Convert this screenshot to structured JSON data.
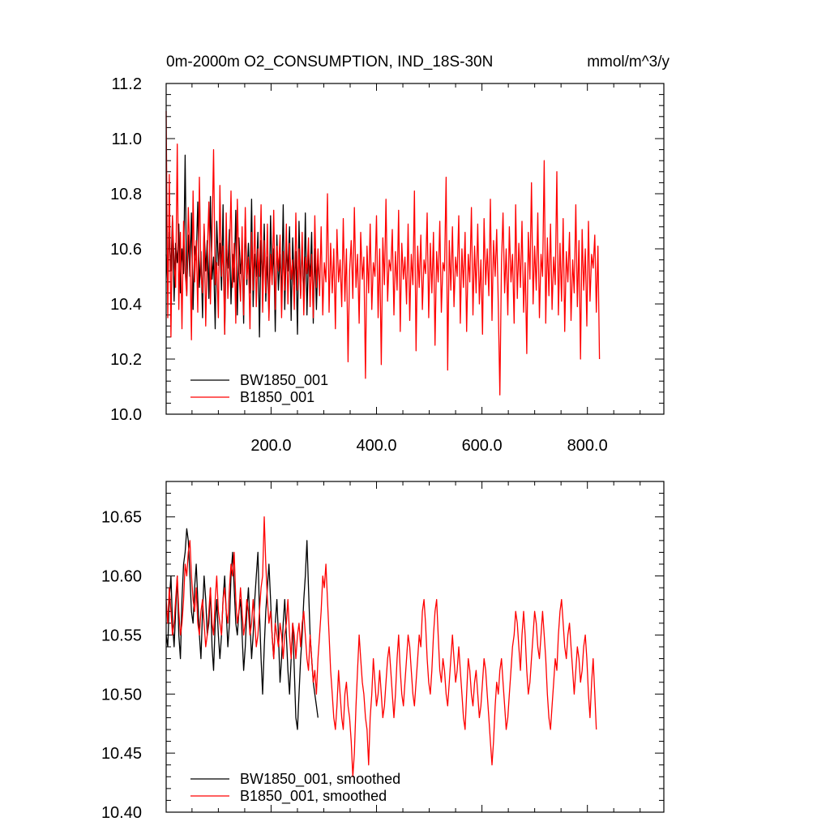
{
  "chart_data": [
    {
      "type": "line",
      "title": "0m-2000m O2_CONSUMPTION, IND_18S-30N",
      "units": "mmol/m^3/y",
      "xlim": [
        1,
        945
      ],
      "ylim": [
        10.0,
        11.2
      ],
      "xticks": [
        200,
        400,
        600,
        800
      ],
      "xtick_labels": [
        "200.0",
        "400.0",
        "600.0",
        "800.0"
      ],
      "yticks": [
        10.0,
        10.2,
        10.4,
        10.6,
        10.8,
        11.0,
        11.2
      ],
      "ytick_labels": [
        "10.0",
        "10.2",
        "10.4",
        "10.6",
        "10.8",
        "11.0",
        "11.2"
      ],
      "legend_position": "bottom-left",
      "series": [
        {
          "name": "BW1850_001",
          "color": "#000000",
          "x_start": 1,
          "x_step": 3,
          "values": [
            10.58,
            10.47,
            10.66,
            10.52,
            10.72,
            10.41,
            10.62,
            10.55,
            10.69,
            10.44,
            10.6,
            10.51,
            10.94,
            10.43,
            10.65,
            10.5,
            10.73,
            10.38,
            10.61,
            10.56,
            10.77,
            10.46,
            10.59,
            10.35,
            10.68,
            10.52,
            10.63,
            10.42,
            10.79,
            10.49,
            10.57,
            10.31,
            10.7,
            10.54,
            10.62,
            10.45,
            10.76,
            10.29,
            10.6,
            10.53,
            10.67,
            10.4,
            10.58,
            10.48,
            10.74,
            10.36,
            10.64,
            10.51,
            10.59,
            10.33,
            10.71,
            10.47,
            10.62,
            10.44,
            10.78,
            10.39,
            10.58,
            10.5,
            10.66,
            10.28,
            10.63,
            10.46,
            10.69,
            10.41,
            10.57,
            10.35,
            10.72,
            10.49,
            10.6,
            10.3,
            10.65,
            10.45,
            10.58,
            10.42,
            10.76,
            10.38,
            10.61,
            10.52,
            10.68,
            10.34,
            10.64,
            10.47,
            10.59,
            10.29,
            10.7,
            10.43,
            10.62,
            10.4,
            10.73,
            10.36,
            10.58,
            10.5,
            10.66,
            10.33,
            10.6,
            10.38,
            10.57
          ]
        },
        {
          "name": "B1850_001",
          "color": "#ff0000",
          "x_start": 1,
          "x_step": 3,
          "values": [
            11.1,
            10.35,
            10.87,
            10.28,
            10.72,
            10.55,
            10.46,
            10.98,
            10.38,
            10.66,
            10.31,
            10.7,
            10.52,
            10.43,
            10.75,
            10.59,
            10.27,
            10.81,
            10.48,
            10.63,
            10.37,
            10.86,
            10.51,
            10.44,
            10.69,
            10.32,
            10.58,
            10.77,
            10.4,
            10.64,
            10.96,
            10.47,
            10.55,
            10.35,
            10.83,
            10.5,
            10.61,
            10.29,
            10.73,
            10.42,
            10.57,
            10.81,
            10.46,
            10.62,
            10.33,
            10.78,
            10.53,
            10.41,
            10.68,
            10.36,
            10.75,
            10.49,
            10.57,
            10.31,
            10.66,
            10.45,
            10.72,
            10.39,
            10.6,
            10.5,
            10.76,
            10.37,
            10.63,
            10.44,
            10.69,
            10.34,
            10.58,
            10.47,
            10.74,
            10.38,
            10.61,
            10.52,
            10.65,
            10.35,
            10.59,
            10.45,
            10.69,
            10.4,
            10.62,
            10.49,
            10.56,
            10.38,
            10.73,
            10.45,
            10.6,
            10.42,
            10.66,
            10.36,
            10.57,
            10.51,
            10.64,
            10.39,
            10.58,
            10.35,
            10.72,
            10.46,
            10.6,
            10.43,
            10.68,
            10.36,
            10.55,
            10.48,
            10.8,
            10.37,
            10.62,
            10.44,
            10.6,
            10.31,
            10.67,
            10.48,
            10.56,
            10.39,
            10.71,
            10.41,
            10.6,
            10.19,
            10.52,
            10.63,
            10.42,
            10.75,
            10.46,
            10.58,
            10.33,
            10.66,
            10.49,
            10.57,
            10.13,
            10.61,
            10.44,
            10.69,
            10.38,
            10.55,
            10.5,
            10.72,
            10.35,
            10.6,
            10.18,
            10.64,
            10.47,
            10.78,
            10.41,
            10.56,
            10.52,
            10.67,
            10.36,
            10.59,
            10.45,
            10.74,
            10.3,
            10.62,
            10.49,
            10.57,
            10.4,
            10.69,
            10.34,
            10.58,
            10.47,
            10.81,
            10.23,
            10.61,
            10.46,
            10.65,
            10.38,
            10.56,
            10.51,
            10.73,
            10.35,
            10.62,
            10.44,
            10.66,
            10.25,
            10.59,
            10.48,
            10.7,
            10.37,
            10.55,
            10.52,
            10.86,
            10.16,
            10.63,
            10.45,
            10.68,
            10.39,
            10.57,
            10.5,
            10.72,
            10.33,
            10.6,
            10.46,
            10.66,
            10.3,
            10.58,
            10.48,
            10.75,
            10.36,
            10.61,
            10.44,
            10.69,
            10.4,
            10.56,
            10.29,
            10.71,
            10.47,
            10.6,
            10.43,
            10.78,
            10.34,
            10.63,
            10.5,
            10.67,
            10.39,
            10.07,
            10.55,
            10.73,
            10.44,
            10.6,
            10.36,
            10.68,
            10.48,
            10.58,
            10.33,
            10.76,
            10.42,
            10.62,
            10.46,
            10.7,
            10.37,
            10.55,
            10.22,
            10.66,
            10.49,
            10.84,
            10.4,
            10.61,
            10.45,
            10.73,
            10.35,
            10.58,
            10.5,
            10.92,
            10.33,
            10.64,
            10.43,
            10.69,
            10.38,
            10.57,
            10.47,
            10.88,
            10.36,
            10.62,
            10.41,
            10.71,
            10.3,
            10.59,
            10.48,
            10.66,
            10.34,
            10.56,
            10.44,
            10.76,
            10.39,
            10.63,
            10.2,
            10.67,
            10.45,
            10.6,
            10.32,
            10.7,
            10.41,
            10.58,
            10.53,
            10.65,
            10.37,
            10.61,
            10.2
          ]
        }
      ]
    },
    {
      "type": "line",
      "xlim": [
        1,
        945
      ],
      "ylim": [
        10.4,
        10.68
      ],
      "yticks": [
        10.4,
        10.45,
        10.5,
        10.55,
        10.6,
        10.65
      ],
      "ytick_labels": [
        "10.40",
        "10.45",
        "10.50",
        "10.55",
        "10.60",
        "10.65"
      ],
      "legend_position": "bottom-left",
      "series": [
        {
          "name": "BW1850_001, smoothed",
          "color": "#000000",
          "x_start": 1,
          "x_step": 3,
          "values": [
            10.55,
            10.54,
            10.58,
            10.6,
            10.56,
            10.54,
            10.57,
            10.6,
            10.55,
            10.53,
            10.58,
            10.61,
            10.62,
            10.64,
            10.63,
            10.6,
            10.57,
            10.56,
            10.59,
            10.61,
            10.58,
            10.55,
            10.53,
            10.57,
            10.6,
            10.58,
            10.55,
            10.56,
            10.59,
            10.54,
            10.52,
            10.56,
            10.58,
            10.55,
            10.53,
            10.55,
            10.58,
            10.6,
            10.57,
            10.54,
            10.56,
            10.6,
            10.62,
            10.59,
            10.56,
            10.55,
            10.57,
            10.58,
            10.55,
            10.52,
            10.54,
            10.57,
            10.59,
            10.56,
            10.53,
            10.55,
            10.58,
            10.6,
            10.62,
            10.57,
            10.53,
            10.5,
            10.54,
            10.57,
            10.59,
            10.61,
            10.58,
            10.55,
            10.53,
            10.56,
            10.58,
            10.55,
            10.51,
            10.53,
            10.56,
            10.58,
            10.55,
            10.52,
            10.5,
            10.53,
            10.56,
            10.52,
            10.48,
            10.47,
            10.5,
            10.53,
            10.55,
            10.58,
            10.6,
            10.63,
            10.59,
            10.55,
            10.53,
            10.51,
            10.5,
            10.49,
            10.48
          ]
        },
        {
          "name": "B1850_001, smoothed",
          "color": "#ff0000",
          "x_start": 1,
          "x_step": 3,
          "values": [
            10.58,
            10.56,
            10.59,
            10.57,
            10.55,
            10.56,
            10.58,
            10.6,
            10.57,
            10.55,
            10.56,
            10.58,
            10.61,
            10.6,
            10.62,
            10.63,
            10.6,
            10.58,
            10.57,
            10.59,
            10.56,
            10.55,
            10.57,
            10.58,
            10.56,
            10.54,
            10.55,
            10.57,
            10.59,
            10.56,
            10.55,
            10.58,
            10.6,
            10.57,
            10.56,
            10.55,
            10.58,
            10.59,
            10.57,
            10.56,
            10.59,
            10.61,
            10.6,
            10.62,
            10.58,
            10.56,
            10.57,
            10.59,
            10.57,
            10.55,
            10.56,
            10.58,
            10.57,
            10.55,
            10.56,
            10.58,
            10.56,
            10.54,
            10.55,
            10.57,
            10.59,
            10.6,
            10.65,
            10.61,
            10.58,
            10.56,
            10.57,
            10.55,
            10.53,
            10.56,
            10.55,
            10.54,
            10.56,
            10.55,
            10.53,
            10.55,
            10.56,
            10.58,
            10.55,
            10.53,
            10.56,
            10.55,
            10.53,
            10.55,
            10.56,
            10.54,
            10.56,
            10.57,
            10.55,
            10.53,
            10.52,
            10.55,
            10.53,
            10.51,
            10.52,
            10.5,
            10.53,
            10.55,
            10.57,
            10.6,
            10.59,
            10.61,
            10.58,
            10.55,
            10.52,
            10.5,
            10.48,
            10.47,
            10.49,
            10.52,
            10.5,
            10.48,
            10.47,
            10.5,
            10.51,
            10.49,
            10.48,
            10.46,
            10.43,
            10.45,
            10.49,
            10.52,
            10.55,
            10.53,
            10.51,
            10.5,
            10.48,
            10.47,
            10.44,
            10.48,
            10.5,
            10.53,
            10.51,
            10.49,
            10.5,
            10.52,
            10.5,
            10.48,
            10.49,
            10.51,
            10.53,
            10.54,
            10.52,
            10.5,
            10.48,
            10.5,
            10.53,
            10.55,
            10.52,
            10.5,
            10.49,
            10.51,
            10.53,
            10.55,
            10.54,
            10.52,
            10.5,
            10.49,
            10.51,
            10.53,
            10.55,
            10.54,
            10.57,
            10.58,
            10.56,
            10.53,
            10.51,
            10.5,
            10.52,
            10.55,
            10.57,
            10.58,
            10.55,
            10.52,
            10.51,
            10.53,
            10.52,
            10.5,
            10.49,
            10.51,
            10.53,
            10.55,
            10.53,
            10.51,
            10.52,
            10.54,
            10.52,
            10.5,
            10.48,
            10.47,
            10.5,
            10.53,
            10.52,
            10.5,
            10.49,
            10.51,
            10.52,
            10.5,
            10.48,
            10.49,
            10.51,
            10.53,
            10.52,
            10.5,
            10.48,
            10.46,
            10.44,
            10.46,
            10.49,
            10.51,
            10.5,
            10.52,
            10.53,
            10.51,
            10.49,
            10.47,
            10.48,
            10.5,
            10.52,
            10.54,
            10.55,
            10.57,
            10.56,
            10.54,
            10.52,
            10.55,
            10.57,
            10.55,
            10.52,
            10.5,
            10.51,
            10.53,
            10.55,
            10.57,
            10.56,
            10.54,
            10.53,
            10.55,
            10.57,
            10.55,
            10.53,
            10.5,
            10.48,
            10.47,
            10.49,
            10.51,
            10.53,
            10.52,
            10.55,
            10.57,
            10.58,
            10.56,
            10.54,
            10.53,
            10.55,
            10.56,
            10.54,
            10.52,
            10.5,
            10.52,
            10.54,
            10.53,
            10.51,
            10.52,
            10.54,
            10.55,
            10.53,
            10.5,
            10.48,
            10.51,
            10.53,
            10.5,
            10.47
          ]
        }
      ]
    }
  ]
}
